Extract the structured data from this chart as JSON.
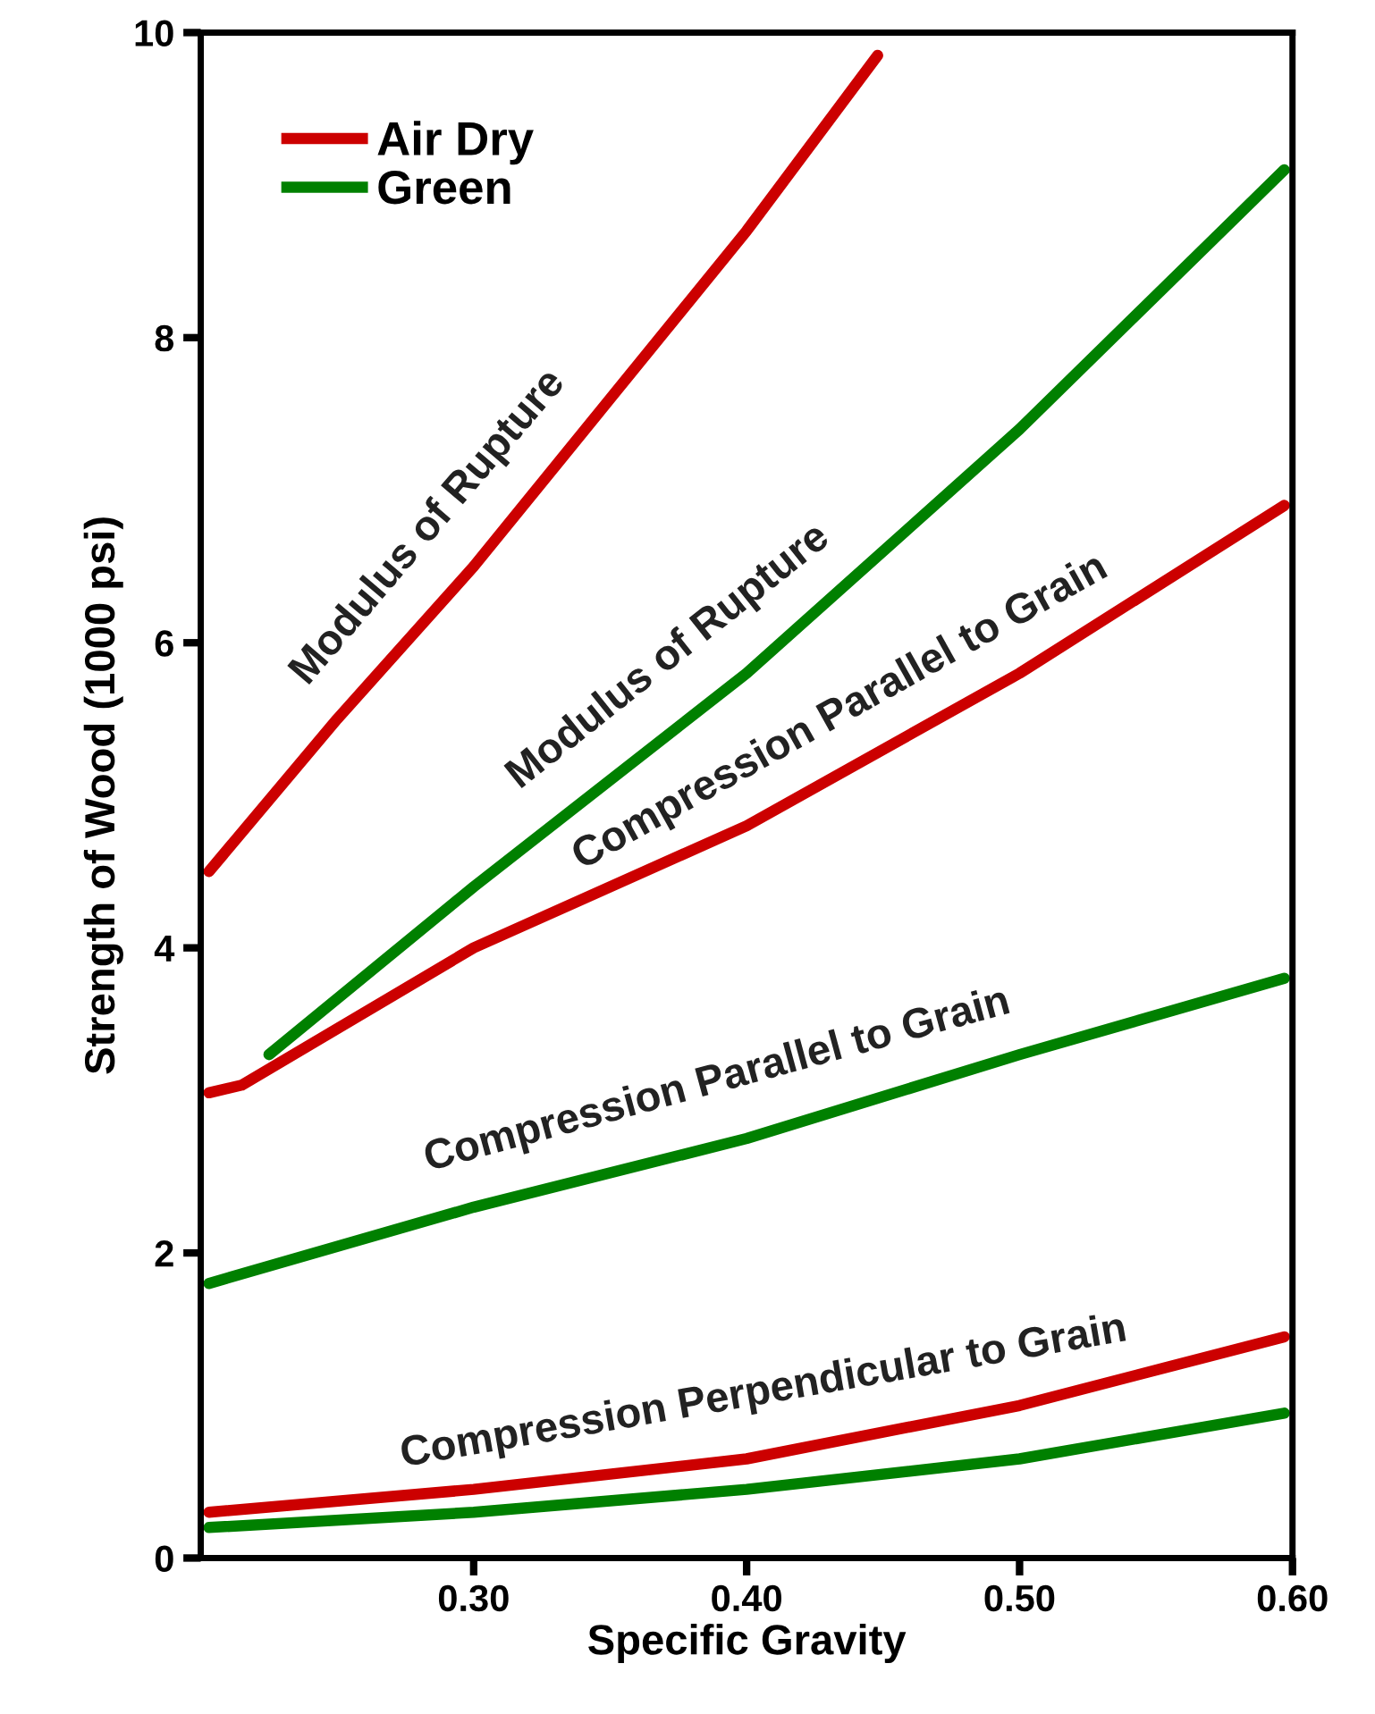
{
  "chart_data": {
    "type": "line",
    "xlabel": "Specific Gravity",
    "ylabel": "Strength of Wood (1000 psi)",
    "xlim": [
      0.2,
      0.6
    ],
    "ylim": [
      0,
      10
    ],
    "xticks": [
      {
        "value": 0.3,
        "label": "0.30"
      },
      {
        "value": 0.4,
        "label": "0.40"
      },
      {
        "value": 0.5,
        "label": "0.50"
      },
      {
        "value": 0.6,
        "label": "0.60"
      }
    ],
    "yticks": [
      0,
      2,
      4,
      6,
      8,
      10
    ],
    "grid": false,
    "legend": "top left",
    "marker": "none",
    "line_style": "solid",
    "series": [
      {
        "name": "Air Dry",
        "color": "#cc0000",
        "x": [
          0.203,
          0.25,
          0.3,
          0.35,
          0.4,
          0.448
        ],
        "values": [
          4.5,
          5.5,
          6.5,
          7.6,
          8.7,
          9.85
        ]
      },
      {
        "name": "Green",
        "color": "#008000",
        "x": [
          0.225,
          0.3,
          0.4,
          0.5,
          0.597
        ],
        "values": [
          3.3,
          4.4,
          5.8,
          7.4,
          9.1
        ]
      },
      {
        "color": "#cc0000",
        "x": [
          0.203,
          0.215,
          0.3,
          0.4,
          0.5,
          0.597
        ],
        "values": [
          3.05,
          3.1,
          4.0,
          4.8,
          5.8,
          6.9
        ]
      },
      {
        "color": "#008000",
        "x": [
          0.203,
          0.3,
          0.4,
          0.5,
          0.597
        ],
        "values": [
          1.8,
          2.3,
          2.75,
          3.3,
          3.8
        ]
      },
      {
        "color": "#cc0000",
        "x": [
          0.203,
          0.3,
          0.4,
          0.5,
          0.597
        ],
        "values": [
          0.3,
          0.45,
          0.65,
          1.0,
          1.45
        ]
      },
      {
        "color": "#008000",
        "x": [
          0.203,
          0.3,
          0.4,
          0.5,
          0.597
        ],
        "values": [
          0.2,
          0.3,
          0.45,
          0.65,
          0.95
        ]
      }
    ],
    "annotations": [
      {
        "text": "Modulus of Rupture",
        "x": 0.3,
        "y": 6.5
      },
      {
        "text": "Modulus of Rupture",
        "x": 0.385,
        "y": 5.6
      },
      {
        "text": "Compression Parallel to Grain",
        "x": 0.445,
        "y": 5.2
      },
      {
        "text": "Compression Parallel to Grain",
        "x": 0.395,
        "y": 2.75
      },
      {
        "text": "Compression Perpendicular to Grain",
        "x": 0.41,
        "y": 0.7
      }
    ]
  }
}
